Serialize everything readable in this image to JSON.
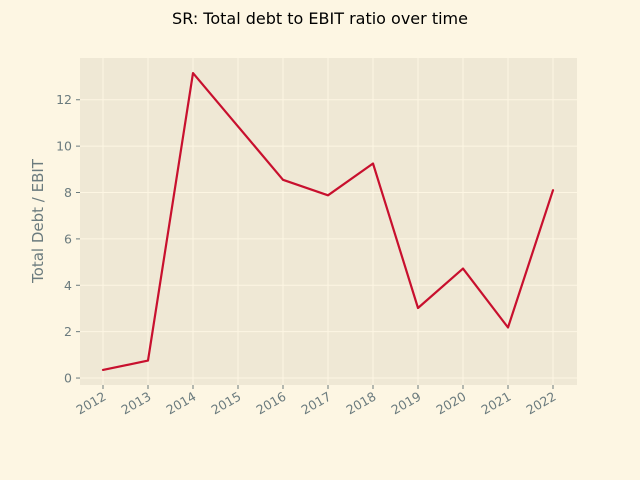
{
  "chart_data": {
    "type": "line",
    "title": "SR: Total debt to EBIT ratio over time",
    "xlabel": "",
    "ylabel": "Total Debt / EBIT",
    "x": [
      "2012",
      "2013",
      "2014",
      "2015",
      "2016",
      "2017",
      "2018",
      "2019",
      "2020",
      "2021",
      "2022"
    ],
    "series": [
      {
        "values": [
          0.35,
          0.75,
          13.15,
          10.85,
          8.55,
          7.88,
          9.25,
          3.02,
          4.72,
          2.18,
          8.1
        ]
      }
    ],
    "yticks": [
      "0",
      "2",
      "4",
      "6",
      "8",
      "10",
      "12"
    ],
    "ylim": [
      -0.3,
      13.8
    ],
    "grid": true,
    "line_color": "#c8102e",
    "plot_background": "#efe8d5",
    "page_background": "#fdf6e3"
  }
}
